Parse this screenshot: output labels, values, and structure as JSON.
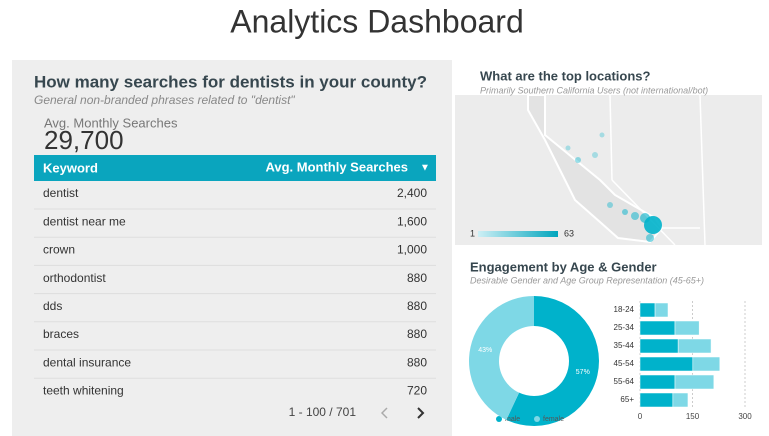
{
  "header": {
    "title": "Analytics Dashboard"
  },
  "searches": {
    "title": "How many searches for dentists in your county?",
    "subtitle": "General non-branded phrases related to \"dentist\"",
    "metric_label": "Avg. Monthly Searches",
    "metric_value": "29,700",
    "table": {
      "columns": [
        "Keyword",
        "Avg. Monthly Searches"
      ],
      "rows": [
        [
          "dentist",
          "2,400"
        ],
        [
          "dentist near me",
          "1,600"
        ],
        [
          "crown",
          "1,000"
        ],
        [
          "orthodontist",
          "880"
        ],
        [
          "dds",
          "880"
        ],
        [
          "braces",
          "880"
        ],
        [
          "dental insurance",
          "880"
        ],
        [
          "teeth whitening",
          "720"
        ]
      ]
    },
    "pagination": "1 - 100 / 701"
  },
  "locations": {
    "title": "What are the top locations?",
    "subtitle": "Primarily Southern California Users (not international/bot)",
    "legend_min": 1,
    "legend_max": 63
  },
  "engagement": {
    "title": "Engagement by Age & Gender",
    "subtitle": "Desirable Gender and Age Group Representation (45-65+)"
  },
  "chart_data": [
    {
      "type": "pie",
      "categories": [
        "male",
        "female"
      ],
      "values": [
        57,
        43
      ],
      "value_labels": [
        "57%",
        "43%"
      ],
      "colors": [
        "#00b2cb",
        "#7ed8e6"
      ]
    },
    {
      "type": "bar",
      "orientation": "horizontal",
      "stacked": true,
      "categories": [
        "18-24",
        "25-34",
        "35-44",
        "45-54",
        "55-64",
        "65+"
      ],
      "series": [
        {
          "name": "male",
          "color": "#00b2cb",
          "values": [
            43,
            100,
            109,
            151,
            100,
            94
          ]
        },
        {
          "name": "female",
          "color": "#7ed8e6",
          "values": [
            37,
            69,
            94,
            77,
            111,
            43
          ]
        }
      ],
      "xlim": [
        0,
        300
      ],
      "xticks": [
        0,
        150,
        300
      ],
      "grid": true
    }
  ]
}
